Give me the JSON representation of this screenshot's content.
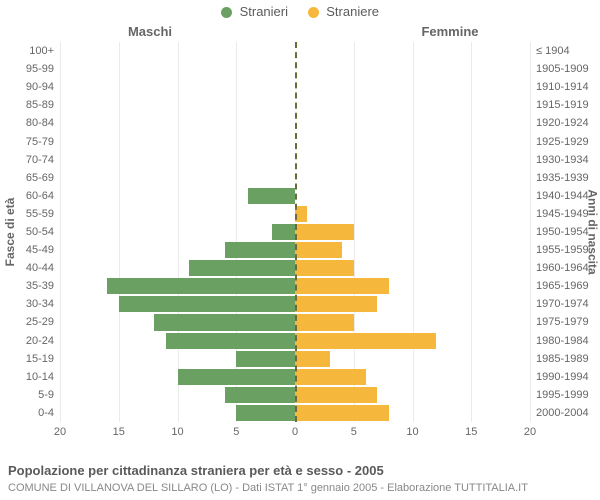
{
  "legend": {
    "male": {
      "label": "Stranieri",
      "color": "#6aa162"
    },
    "female": {
      "label": "Straniere",
      "color": "#f5b73c"
    }
  },
  "headers": {
    "left": "Maschi",
    "right": "Femmine"
  },
  "axis": {
    "left_title": "Fasce di età",
    "right_title": "Anni di nascita",
    "xmax": 20,
    "x_ticks": [
      20,
      15,
      10,
      5,
      0,
      5,
      10,
      15,
      20
    ],
    "grid_color": "rgba(0,0,0,0.08)",
    "zero_color": "#6b6b3a"
  },
  "colors": {
    "male_bar": "#6aa162",
    "female_bar": "#f5b73c",
    "background": "#ffffff",
    "text": "#5c5c5c"
  },
  "rows": [
    {
      "age": "100+",
      "birth": "≤ 1904",
      "m": 0,
      "f": 0
    },
    {
      "age": "95-99",
      "birth": "1905-1909",
      "m": 0,
      "f": 0
    },
    {
      "age": "90-94",
      "birth": "1910-1914",
      "m": 0,
      "f": 0
    },
    {
      "age": "85-89",
      "birth": "1915-1919",
      "m": 0,
      "f": 0
    },
    {
      "age": "80-84",
      "birth": "1920-1924",
      "m": 0,
      "f": 0
    },
    {
      "age": "75-79",
      "birth": "1925-1929",
      "m": 0,
      "f": 0
    },
    {
      "age": "70-74",
      "birth": "1930-1934",
      "m": 0,
      "f": 0
    },
    {
      "age": "65-69",
      "birth": "1935-1939",
      "m": 0,
      "f": 0
    },
    {
      "age": "60-64",
      "birth": "1940-1944",
      "m": 4,
      "f": 0
    },
    {
      "age": "55-59",
      "birth": "1945-1949",
      "m": 0,
      "f": 1
    },
    {
      "age": "50-54",
      "birth": "1950-1954",
      "m": 2,
      "f": 5
    },
    {
      "age": "45-49",
      "birth": "1955-1959",
      "m": 6,
      "f": 4
    },
    {
      "age": "40-44",
      "birth": "1960-1964",
      "m": 9,
      "f": 5
    },
    {
      "age": "35-39",
      "birth": "1965-1969",
      "m": 16,
      "f": 8
    },
    {
      "age": "30-34",
      "birth": "1970-1974",
      "m": 15,
      "f": 7
    },
    {
      "age": "25-29",
      "birth": "1975-1979",
      "m": 12,
      "f": 5
    },
    {
      "age": "20-24",
      "birth": "1980-1984",
      "m": 11,
      "f": 12
    },
    {
      "age": "15-19",
      "birth": "1985-1989",
      "m": 5,
      "f": 3
    },
    {
      "age": "10-14",
      "birth": "1990-1994",
      "m": 10,
      "f": 6
    },
    {
      "age": "5-9",
      "birth": "1995-1999",
      "m": 6,
      "f": 7
    },
    {
      "age": "0-4",
      "birth": "2000-2004",
      "m": 5,
      "f": 8
    }
  ],
  "footer": {
    "title": "Popolazione per cittadinanza straniera per età e sesso - 2005",
    "subtitle": "COMUNE DI VILLANOVA DEL SILLARO (LO) - Dati ISTAT 1° gennaio 2005 - Elaborazione TUTTITALIA.IT"
  },
  "chart_type": "population-pyramid"
}
